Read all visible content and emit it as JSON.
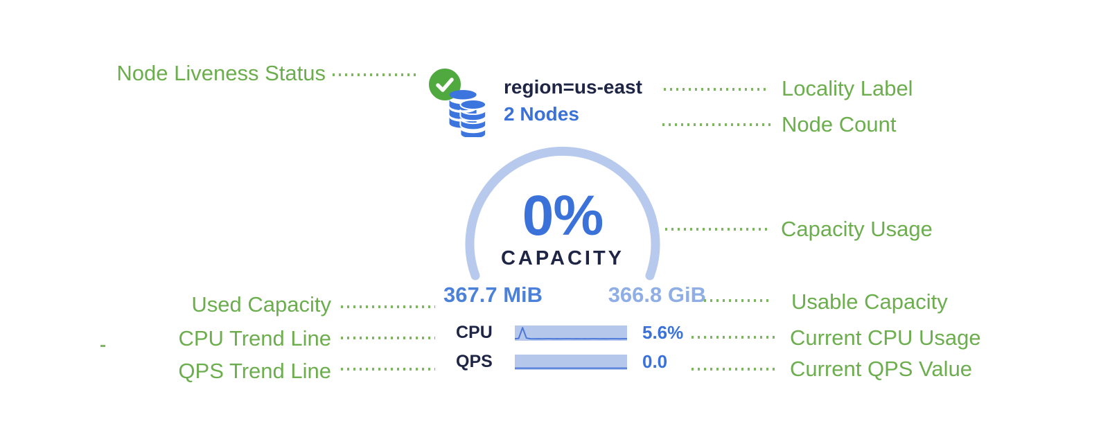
{
  "annotations": {
    "left": [
      {
        "label": "Node Liveness Status"
      },
      {
        "label": "Used Capacity"
      },
      {
        "label": "CPU Trend Line"
      },
      {
        "label": "QPS Trend Line"
      }
    ],
    "right": [
      {
        "label": "Locality Label"
      },
      {
        "label": "Node Count"
      },
      {
        "label": "Capacity Usage"
      },
      {
        "label": "Usable Capacity"
      },
      {
        "label": "Current CPU Usage"
      },
      {
        "label": "Current QPS Value"
      }
    ]
  },
  "node_card": {
    "locality_label": "region=us-east",
    "node_count": "2 Nodes",
    "capacity": {
      "pct": "0%",
      "caption": "CAPACITY",
      "used": "367.7 MiB",
      "usable": "366.8 GiB"
    },
    "metrics": {
      "cpu": {
        "label": "CPU",
        "value": "5.6%",
        "trend": [
          5,
          8,
          94,
          10,
          5,
          4,
          5,
          4,
          5,
          5,
          4,
          5,
          4,
          5,
          5,
          4,
          5,
          4,
          5,
          4,
          5,
          5,
          4,
          5,
          4,
          5,
          5,
          4,
          5,
          5
        ]
      },
      "qps": {
        "label": "QPS",
        "value": "0.0",
        "trend": [
          2,
          2,
          2,
          2,
          2,
          2,
          2,
          2,
          2,
          2,
          2,
          2,
          2,
          2,
          2,
          2,
          2,
          2,
          2,
          2,
          2,
          2,
          2,
          2,
          2,
          2,
          2,
          2,
          2,
          2
        ]
      }
    }
  },
  "icons": {
    "liveness": "check-circle-icon",
    "node": "database-stack-icon"
  },
  "colors": {
    "annotation-green": "#6cae4e",
    "leader-green": "#7eb55f",
    "check-green": "#4fa93f",
    "db-blue": "#3c75de",
    "navy": "#1e2545",
    "accent-blue": "#3a72d9",
    "used-blue": "#4c81da",
    "usable-blue": "#8faee6",
    "arc-blue": "#b8c9ee",
    "bar-blue": "#b5c8ec",
    "trend-blue": "#4a77d8"
  }
}
